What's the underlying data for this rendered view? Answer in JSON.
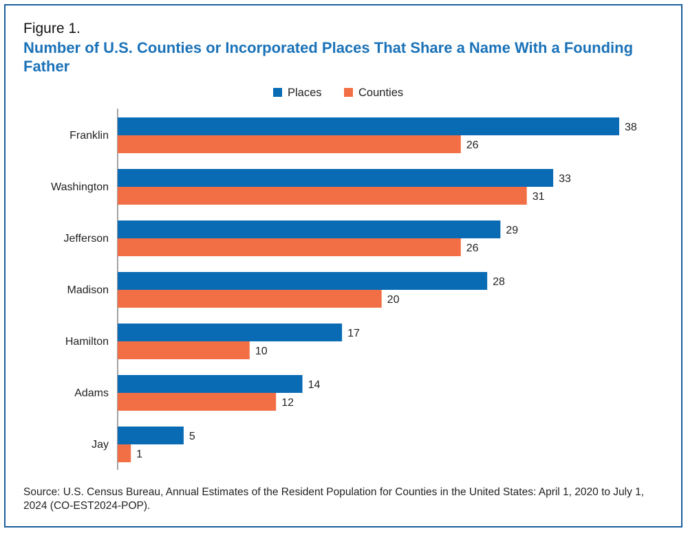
{
  "figure_label": "Figure 1.",
  "title": "Number of U.S. Counties or Incorporated Places That Share a Name With a Founding Father",
  "source": "Source: U.S. Census Bureau, Annual Estimates of the Resident Population for Counties in the United States: April 1, 2020 to July 1, 2024 (CO-EST2024-POP).",
  "chart_data": {
    "type": "bar",
    "orientation": "horizontal",
    "categories": [
      "Franklin",
      "Washington",
      "Jefferson",
      "Madison",
      "Hamilton",
      "Adams",
      "Jay"
    ],
    "series": [
      {
        "name": "Places",
        "color": "#0a6bb5",
        "values": [
          38,
          33,
          29,
          28,
          17,
          14,
          5
        ]
      },
      {
        "name": "Counties",
        "color": "#f26f45",
        "values": [
          26,
          31,
          26,
          20,
          10,
          12,
          1
        ]
      }
    ],
    "xlim": [
      0,
      38
    ],
    "grid": false,
    "legend": "top-center",
    "data_labels": true
  }
}
